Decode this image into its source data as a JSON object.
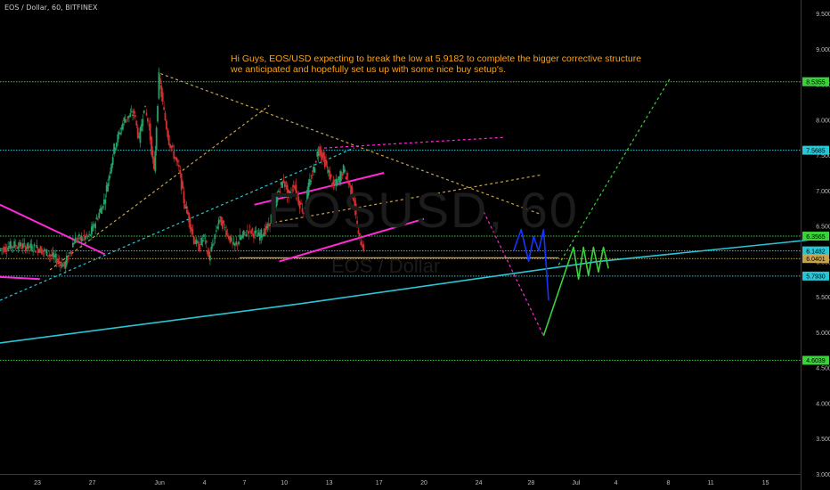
{
  "symbol_label": "EOS / Dollar, 60, BITFINEX",
  "watermark": {
    "big": "EOSUSD, 60",
    "small": "EOS / Dollar"
  },
  "annotation": {
    "line1": "Hi Guys, EOS/USD expecting to break the low at 5.9182 to complete the bigger corrective structure",
    "line2": "we anticipated and hopefully set us up with some nice buy setup's."
  },
  "colors": {
    "background": "#000000",
    "up_candle": "#26a269",
    "down_candle": "#d32f2f",
    "magenta": "#ff2bd6",
    "cyan": "#3fe0ee",
    "orange": "#c8a24a",
    "green_level": "#3bd13b",
    "cyan_level": "#29c7d6",
    "blue": "#1636ff",
    "bright_green": "#39ff3c",
    "axis_text": "#bdbdbd"
  },
  "chart_data": {
    "type": "line",
    "title": "",
    "ylim": [
      3.0,
      9.5
    ],
    "y_ticks": [
      "9.5000",
      "9.0000",
      "8.5000",
      "8.0000",
      "7.5000",
      "7.0000",
      "6.5000",
      "6.0000",
      "5.5000",
      "5.0000",
      "4.5000",
      "4.0000",
      "3.5000",
      "3.0000"
    ],
    "x_ticks": [
      "23",
      "27",
      "Jun",
      "4",
      "7",
      "10",
      "13",
      "17",
      "20",
      "24",
      "28",
      "Jul",
      "4",
      "8",
      "11",
      "15"
    ],
    "grid": false,
    "price_levels": [
      {
        "label": "8.5355",
        "value": 8.5355,
        "color": "green"
      },
      {
        "label": "7.5685",
        "value": 7.5685,
        "color": "cyan"
      },
      {
        "label": "6.3565",
        "value": 6.3565,
        "color": "green"
      },
      {
        "label": "6.1482",
        "value": 6.1482,
        "color": "cyan"
      },
      {
        "label": "6.0401",
        "value": 6.0401,
        "color": "orange"
      },
      {
        "label": "5.7930",
        "value": 5.793,
        "color": "cyan"
      },
      {
        "label": "4.6039",
        "value": 4.6039,
        "color": "green"
      }
    ],
    "price_path": [
      {
        "t": 0,
        "v": 6.17
      },
      {
        "t": 3,
        "v": 6.23
      },
      {
        "t": 8,
        "v": 6.18
      },
      {
        "t": 11,
        "v": 6.05
      },
      {
        "t": 13,
        "v": 5.93
      },
      {
        "t": 15,
        "v": 6.3
      },
      {
        "t": 18,
        "v": 6.35
      },
      {
        "t": 21,
        "v": 6.85
      },
      {
        "t": 23,
        "v": 7.6
      },
      {
        "t": 25,
        "v": 8.0
      },
      {
        "t": 27,
        "v": 8.1
      },
      {
        "t": 28,
        "v": 7.7
      },
      {
        "t": 29,
        "v": 8.2
      },
      {
        "t": 30,
        "v": 7.9
      },
      {
        "t": 31,
        "v": 7.25
      },
      {
        "t": 32,
        "v": 8.6
      },
      {
        "t": 33,
        "v": 8.1
      },
      {
        "t": 34,
        "v": 7.7
      },
      {
        "t": 35,
        "v": 7.5
      },
      {
        "t": 36,
        "v": 7.3
      },
      {
        "t": 37,
        "v": 6.85
      },
      {
        "t": 38,
        "v": 6.6
      },
      {
        "t": 39,
        "v": 6.3
      },
      {
        "t": 40,
        "v": 6.2
      },
      {
        "t": 41,
        "v": 6.35
      },
      {
        "t": 42,
        "v": 6.05
      },
      {
        "t": 43,
        "v": 6.3
      },
      {
        "t": 44,
        "v": 6.6
      },
      {
        "t": 45,
        "v": 6.5
      },
      {
        "t": 46,
        "v": 6.35
      },
      {
        "t": 47,
        "v": 6.2
      },
      {
        "t": 48,
        "v": 6.3
      },
      {
        "t": 50,
        "v": 6.45
      },
      {
        "t": 52,
        "v": 6.35
      },
      {
        "t": 54,
        "v": 6.5
      },
      {
        "t": 56,
        "v": 7.0
      },
      {
        "t": 57,
        "v": 7.15
      },
      {
        "t": 58,
        "v": 6.9
      },
      {
        "t": 59,
        "v": 7.1
      },
      {
        "t": 60,
        "v": 6.85
      },
      {
        "t": 61,
        "v": 6.7
      },
      {
        "t": 62,
        "v": 7.05
      },
      {
        "t": 63,
        "v": 7.3
      },
      {
        "t": 64,
        "v": 7.6
      },
      {
        "t": 65,
        "v": 7.45
      },
      {
        "t": 66,
        "v": 7.25
      },
      {
        "t": 67,
        "v": 7.05
      },
      {
        "t": 68,
        "v": 7.15
      },
      {
        "t": 69,
        "v": 7.3
      },
      {
        "t": 70,
        "v": 7.1
      },
      {
        "t": 71,
        "v": 6.9
      },
      {
        "t": 72,
        "v": 6.35
      },
      {
        "t": 73,
        "v": 6.2
      }
    ],
    "drawings": [
      {
        "type": "trendline",
        "color": "orange",
        "dashed": true,
        "points": [
          [
            32.2,
            8.65
          ],
          [
            109,
            6.65
          ]
        ]
      },
      {
        "type": "trendline",
        "color": "orange",
        "dashed": true,
        "points": [
          [
            10,
            5.88
          ],
          [
            54,
            8.2
          ]
        ]
      },
      {
        "type": "trendline",
        "color": "orange",
        "dashed": true,
        "points": [
          [
            55,
            6.55
          ],
          [
            108.5,
            7.22
          ]
        ]
      },
      {
        "type": "trendline",
        "color": "cyan",
        "dashed": true,
        "points": [
          [
            0,
            5.45
          ],
          [
            71,
            7.6
          ]
        ]
      },
      {
        "type": "trendline",
        "color": "magenta",
        "dashed": true,
        "points": [
          [
            65,
            7.6
          ],
          [
            101,
            7.75
          ]
        ]
      },
      {
        "type": "trendline",
        "color": "orange",
        "dashed": false,
        "points": [
          [
            48,
            6.05
          ],
          [
            112,
            6.05
          ]
        ]
      },
      {
        "type": "trendline",
        "color": "magenta",
        "dashed": false,
        "points": [
          [
            0,
            6.8
          ],
          [
            21,
            6.1
          ]
        ]
      },
      {
        "type": "trendline",
        "color": "magenta",
        "dashed": false,
        "points": [
          [
            0,
            5.78
          ],
          [
            8,
            5.75
          ]
        ]
      },
      {
        "type": "trendline",
        "color": "magenta",
        "dashed": false,
        "points": [
          [
            51,
            6.8
          ],
          [
            77,
            7.25
          ]
        ]
      },
      {
        "type": "trendline",
        "color": "magenta",
        "dashed": false,
        "points": [
          [
            56,
            6.0
          ],
          [
            85,
            6.6
          ]
        ]
      },
      {
        "type": "curve",
        "color": "cyan",
        "dashed": false,
        "points": [
          [
            0,
            4.85
          ],
          [
            60,
            5.4
          ],
          [
            120,
            6.0
          ],
          [
            162,
            6.3
          ]
        ]
      },
      {
        "type": "projection",
        "color": "magenta",
        "dashed": true,
        "points": [
          [
            97,
            6.7
          ],
          [
            109,
            4.95
          ]
        ]
      },
      {
        "type": "projection",
        "color": "blue",
        "dashed": false,
        "points": [
          [
            103,
            6.15
          ],
          [
            104.5,
            6.45
          ],
          [
            106,
            6.0
          ],
          [
            107,
            6.35
          ],
          [
            108,
            6.15
          ],
          [
            109,
            6.45
          ],
          [
            110,
            5.45
          ]
        ]
      },
      {
        "type": "projection",
        "color": "green",
        "dashed": false,
        "points": [
          [
            109,
            4.95
          ],
          [
            115,
            6.2
          ],
          [
            116,
            5.75
          ],
          [
            117,
            6.2
          ],
          [
            118,
            5.8
          ],
          [
            119,
            6.2
          ],
          [
            120,
            5.85
          ],
          [
            121,
            6.2
          ],
          [
            122,
            5.9
          ]
        ]
      },
      {
        "type": "projection",
        "color": "green",
        "dashed": true,
        "points": [
          [
            112,
            5.95
          ],
          [
            134.5,
            8.6
          ]
        ]
      }
    ]
  }
}
